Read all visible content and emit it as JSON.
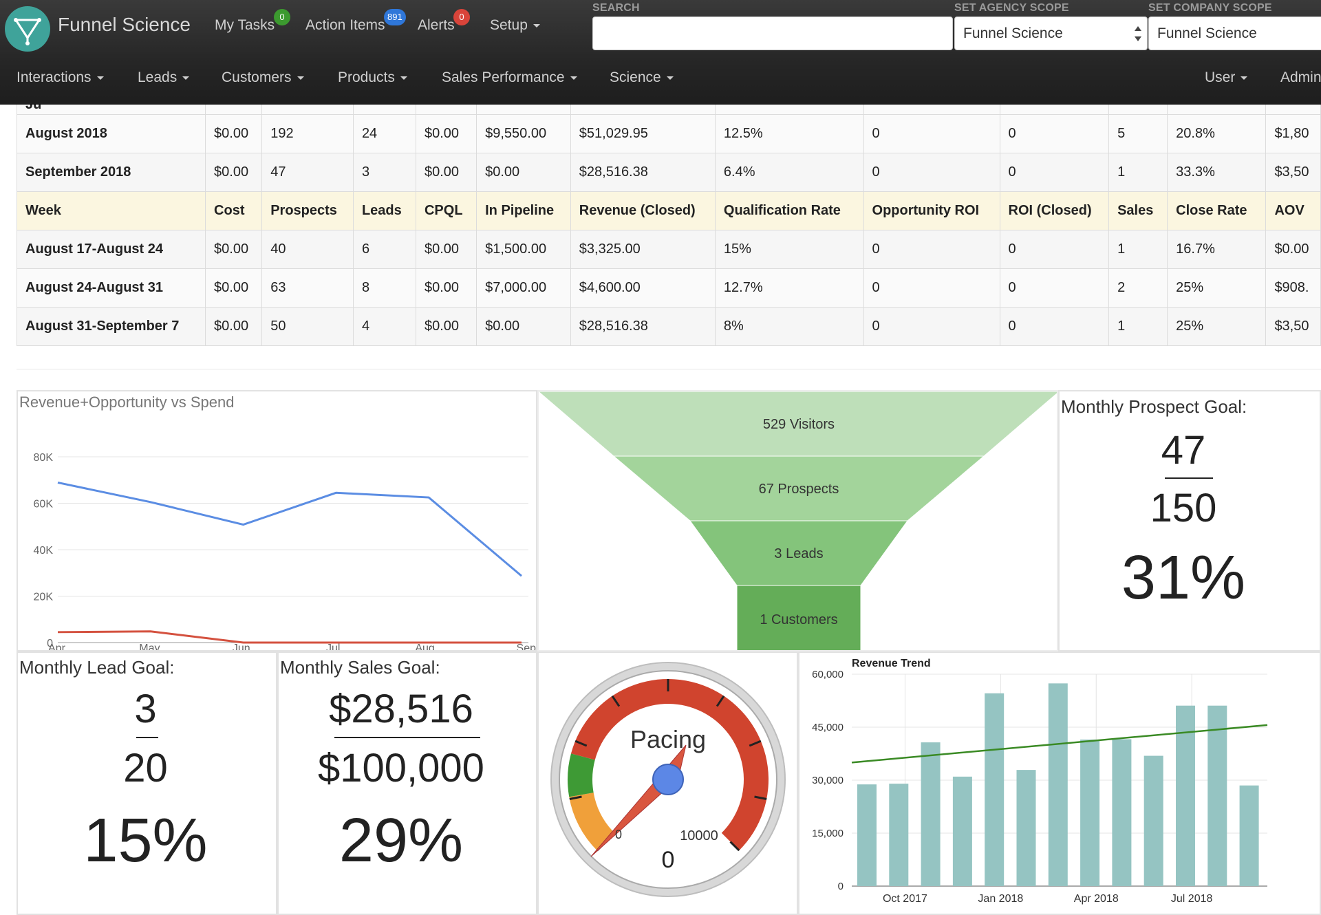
{
  "app": {
    "brand": "Funnel Science",
    "top_nav": [
      {
        "label": "My Tasks",
        "badge": "0",
        "badge_color": "#3c9a2f"
      },
      {
        "label": "Action Items",
        "badge": "891",
        "badge_color": "#2f77d9"
      },
      {
        "label": "Alerts",
        "badge": "0",
        "badge_color": "#d9443a"
      },
      {
        "label": "Setup"
      }
    ],
    "search_label": "SEARCH",
    "search_value": "",
    "agency_scope_label": "SET AGENCY SCOPE",
    "agency_scope_value": "Funnel Science",
    "company_scope_label": "SET COMPANY SCOPE",
    "company_scope_value": "Funnel Science",
    "main_nav": [
      "Interactions",
      "Leads",
      "Customers",
      "Products",
      "Sales Performance",
      "Science"
    ],
    "right_nav": [
      "User",
      "Admin"
    ]
  },
  "table": {
    "partial_row": [
      "Ju",
      "",
      "",
      "",
      "",
      "",
      "",
      "",
      "",
      "",
      "",
      "",
      ""
    ],
    "monthly_rows": [
      [
        "August 2018",
        "$0.00",
        "192",
        "24",
        "$0.00",
        "$9,550.00",
        "$51,029.95",
        "12.5%",
        "0",
        "0",
        "5",
        "20.8%",
        "$1,80"
      ],
      [
        "September 2018",
        "$0.00",
        "47",
        "3",
        "$0.00",
        "$0.00",
        "$28,516.38",
        "6.4%",
        "0",
        "0",
        "1",
        "33.3%",
        "$3,50"
      ]
    ],
    "week_headers": [
      "Week",
      "Cost",
      "Prospects",
      "Leads",
      "CPQL",
      "In Pipeline",
      "Revenue (Closed)",
      "Qualification Rate",
      "Opportunity ROI",
      "ROI (Closed)",
      "Sales",
      "Close Rate",
      "AOV"
    ],
    "weekly_rows": [
      [
        "August 17-August 24",
        "$0.00",
        "40",
        "6",
        "$0.00",
        "$1,500.00",
        "$3,325.00",
        "15%",
        "0",
        "0",
        "1",
        "16.7%",
        "$0.00"
      ],
      [
        "August 24-August 31",
        "$0.00",
        "63",
        "8",
        "$0.00",
        "$7,000.00",
        "$4,600.00",
        "12.7%",
        "0",
        "0",
        "2",
        "25%",
        "$908."
      ],
      [
        "August 31-September 7",
        "$0.00",
        "50",
        "4",
        "$0.00",
        "$0.00",
        "$28,516.38",
        "8%",
        "0",
        "0",
        "1",
        "25%",
        "$3,50"
      ]
    ]
  },
  "line_chart": {
    "title": "Revenue+Opportunity vs Spend",
    "chart_data": {
      "type": "line",
      "x": [
        "Apr",
        "May",
        "Jun",
        "Jul",
        "Aug",
        "Sep"
      ],
      "ylim": [
        0,
        80000
      ],
      "yticks": [
        0,
        20000,
        40000,
        60000,
        80000
      ],
      "ytick_labels": [
        "0",
        "20K",
        "40K",
        "60K",
        "80K"
      ],
      "series": [
        {
          "values": [
            68900,
            60500,
            50800,
            64500,
            62500,
            28700
          ],
          "color": "#5b8de3"
        },
        {
          "values": [
            4500,
            4800,
            0,
            0,
            0,
            0
          ],
          "color": "#d4513f"
        }
      ]
    }
  },
  "funnel": {
    "stages": [
      {
        "label": "529 Visitors",
        "color": "#bedfb9"
      },
      {
        "label": "67 Prospects",
        "color": "#a3d49b"
      },
      {
        "label": "3 Leads",
        "color": "#84c47b"
      },
      {
        "label": "1 Customers",
        "color": "#64ad58"
      }
    ]
  },
  "prospect_goal": {
    "title": "Monthly Prospect Goal:",
    "actual": "47",
    "goal": "150",
    "percent": "31%"
  },
  "lead_goal": {
    "title": "Monthly Lead Goal:",
    "actual": "3",
    "goal": "20",
    "percent": "15%"
  },
  "sales_goal": {
    "title": "Monthly Sales Goal:",
    "actual": "$28,516",
    "goal": "$100,000",
    "percent": "29%"
  },
  "gauge": {
    "label": "Pacing",
    "min_label": "0",
    "max_label": "10000",
    "value_label": "0",
    "colors": {
      "orange": "#f0a03a",
      "green": "#3e9a35",
      "red": "#d0442e",
      "needle": "#d9563f",
      "hub": "#5c87e6"
    }
  },
  "bar_chart": {
    "title": "Revenue Trend",
    "chart_data": {
      "type": "bar",
      "ylim": [
        0,
        60000
      ],
      "yticks": [
        0,
        15000,
        30000,
        45000,
        60000
      ],
      "ytick_labels": [
        "0",
        "15,000",
        "30,000",
        "45,000",
        "60,000"
      ],
      "xtick_labels": [
        {
          "label": "Oct 2017",
          "index": 1.5
        },
        {
          "label": "Jan 2018",
          "index": 4.5
        },
        {
          "label": "Apr 2018",
          "index": 7.5
        },
        {
          "label": "Jul 2018",
          "index": 10.5
        }
      ],
      "values": [
        28800,
        29000,
        40700,
        31000,
        54600,
        32900,
        57400,
        41500,
        41600,
        36900,
        51100,
        51100,
        28500
      ],
      "bar_color": "#95c4c2",
      "trendline": {
        "start": 35000,
        "end": 45600,
        "color": "#3a8a24"
      }
    }
  }
}
